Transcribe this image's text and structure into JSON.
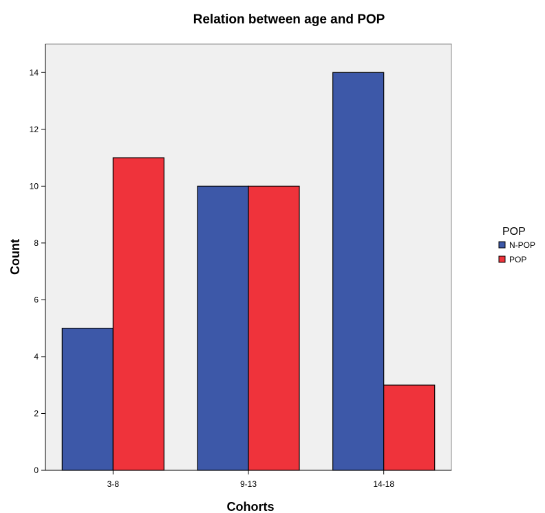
{
  "chart_data": {
    "type": "bar",
    "title": "Relation between age and POP",
    "xlabel": "Cohorts",
    "ylabel": "Count",
    "categories": [
      "3-8",
      "9-13",
      "14-18"
    ],
    "series": [
      {
        "name": "N-POP",
        "values": [
          5,
          10,
          14
        ],
        "color": "#3d58a8"
      },
      {
        "name": "POP",
        "values": [
          11,
          10,
          3
        ],
        "color": "#ef333b"
      }
    ],
    "ylim": [
      0,
      15
    ],
    "yticks": [
      0,
      2,
      4,
      6,
      8,
      10,
      12,
      14
    ],
    "grid": false,
    "legend": {
      "title": "POP",
      "placement": "right"
    },
    "plot_background": "#f0f0f0"
  }
}
